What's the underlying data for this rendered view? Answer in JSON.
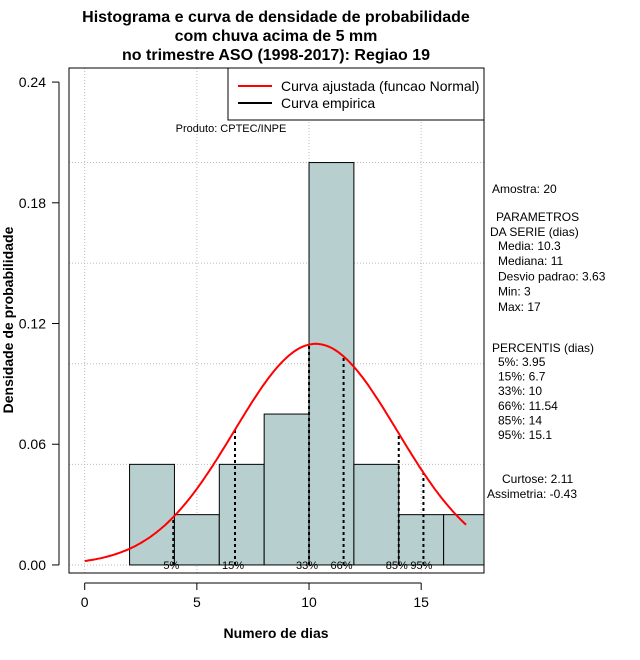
{
  "chart_data": {
    "type": "bar",
    "title_lines": [
      "Histograma e curva de densidade de probabilidade",
      "com chuva acima de 5 mm",
      "no trimestre ASO (1998-2017): Regiao 19"
    ],
    "xlabel": "Numero de dias",
    "ylabel": "Densidade de probabilidade",
    "xlim": [
      -0.7,
      17.8
    ],
    "ylim": [
      -0.004,
      0.247
    ],
    "x_ticks": [
      0,
      5,
      10,
      15
    ],
    "y_ticks": [
      0.0,
      0.06,
      0.12,
      0.18,
      0.24
    ],
    "y_tick_labels": [
      "0.00",
      "0.06",
      "0.12",
      "0.18",
      "0.24"
    ],
    "grid": true,
    "histogram": {
      "bins": [
        {
          "x0": 2,
          "x1": 4,
          "density": 0.05
        },
        {
          "x0": 4,
          "x1": 6,
          "density": 0.025
        },
        {
          "x0": 6,
          "x1": 8,
          "density": 0.05
        },
        {
          "x0": 8,
          "x1": 10,
          "density": 0.075
        },
        {
          "x0": 10,
          "x1": 12,
          "density": 0.2
        },
        {
          "x0": 12,
          "x1": 14,
          "density": 0.05
        },
        {
          "x0": 14,
          "x1": 16,
          "density": 0.025
        },
        {
          "x0": 16,
          "x1": 18,
          "density": 0.025
        }
      ],
      "fill": "#b8cfcf"
    },
    "series": [
      {
        "name": "Curva ajustada (funcao Normal)",
        "color": "#ff0000",
        "mean": 10.3,
        "sd": 3.63,
        "x_range": [
          0,
          17
        ]
      },
      {
        "name": "Curva empirica",
        "color": "#000000"
      }
    ],
    "percentile_marks": [
      {
        "label": "5%",
        "x": 3.95
      },
      {
        "label": "15%",
        "x": 6.7
      },
      {
        "label": "33%",
        "x": 10
      },
      {
        "label": "66%",
        "x": 11.54
      },
      {
        "label": "85%",
        "x": 14
      },
      {
        "label": "95%",
        "x": 15.1
      }
    ],
    "legend_position": "top-right",
    "credit": "Produto: CPTEC/INPE"
  },
  "stats": {
    "amostra": "Amostra: 20",
    "param_header": [
      "PARAMETROS",
      "DA SERIE (dias)"
    ],
    "params": [
      "Media: 10.3",
      "Mediana: 11",
      "Desvio padrao: 3.63",
      "Min: 3",
      "Max: 17"
    ],
    "percentis_header": "PERCENTIS (dias)",
    "percentis": [
      "5%: 3.95",
      "15%: 6.7",
      "33%: 10",
      "66%: 11.54",
      "85%: 14",
      "95%: 15.1"
    ],
    "curtose": "Curtose: 2.11",
    "assimetria": "Assimetria: -0.43"
  }
}
